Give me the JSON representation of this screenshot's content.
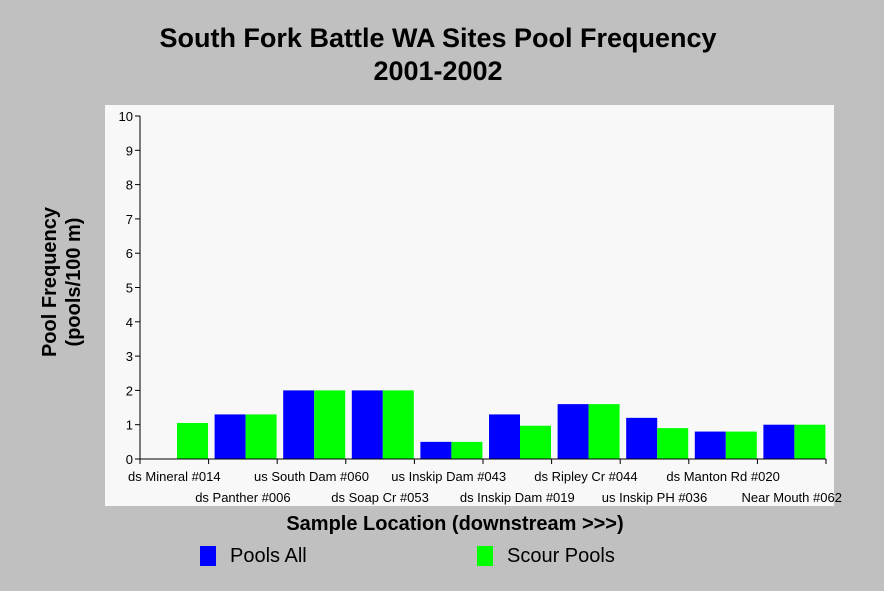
{
  "chart_data": {
    "type": "bar",
    "title_line1": "South Fork Battle WA Sites Pool Frequency",
    "title_line2": "2001-2002",
    "xlabel": "Sample Location (downstream >>>)",
    "ylabel_line1": "Pool Frequency",
    "ylabel_line2": "(pools/100 m)",
    "ylim": [
      0,
      10
    ],
    "yticks": [
      "0",
      "1",
      "2",
      "3",
      "4",
      "5",
      "6",
      "7",
      "8",
      "9",
      "10"
    ],
    "categories": [
      "ds Mineral #014",
      "ds Panther #006",
      "us South Dam #060",
      "ds Soap Cr #053",
      "us Inskip Dam #043",
      "ds Inskip Dam #019",
      "ds Ripley Cr #044",
      "us Inskip PH #036",
      "ds Manton Rd #020",
      "Near Mouth #062"
    ],
    "series": [
      {
        "name": "Pools All",
        "color": "#0000ff",
        "values": [
          0,
          1.3,
          2.0,
          2.0,
          0.5,
          1.3,
          1.6,
          1.2,
          0.8,
          1.0
        ]
      },
      {
        "name": "Scour Pools",
        "color": "#00ff00",
        "values": [
          1.05,
          1.3,
          2.0,
          2.0,
          0.5,
          0.97,
          1.6,
          0.9,
          0.8,
          1.0
        ]
      }
    ],
    "grid": false,
    "legend_position": "bottom",
    "plot_background": "#f8f8f8"
  }
}
